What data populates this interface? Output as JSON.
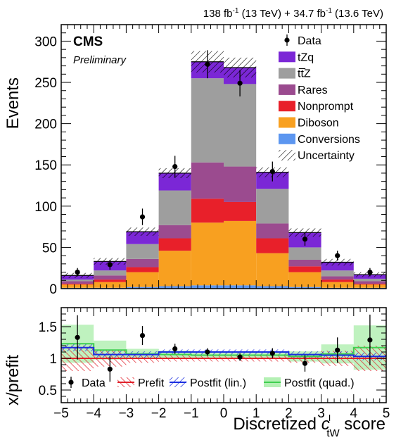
{
  "header": {
    "lumi_run2": "138 fb",
    "lumi_run2_sup": "-1",
    "lumi_run2_energy": " (13 TeV) + ",
    "lumi_run3": "34.7 fb",
    "lumi_run3_sup": "-1",
    "lumi_run3_energy": " (13.6 TeV)",
    "experiment": "CMS",
    "status": "Preliminary"
  },
  "colors": {
    "tZq": "#7b27d6",
    "ttZ": "#9e9e9e",
    "Rares": "#9b4b8f",
    "Nonprompt": "#e8202a",
    "Diboson": "#f8a020",
    "Conversions": "#5c96f0",
    "Prefit": "#e0202a",
    "PostfitLin": "#1a2ee0",
    "PostfitQuad": "#3fcf50",
    "PostfitQuadBand": "#b4f0b4"
  },
  "chart_data": [
    {
      "type": "stacked_bar",
      "xlabel_main": "Discretized ",
      "xlabel_symbol": "c",
      "xlabel_sup": "I",
      "xlabel_sub": "tW",
      "xlabel_tail": " score",
      "ylabel": "Events",
      "xlim": [
        -5,
        5
      ],
      "ylim": [
        0,
        320
      ],
      "x_ticks": [
        -5,
        -4,
        -3,
        -2,
        -1,
        0,
        1,
        2,
        3,
        4,
        5
      ],
      "y_ticks": [
        0,
        50,
        100,
        150,
        200,
        250,
        300
      ],
      "bin_edges": [
        -5,
        -4,
        -3,
        -2,
        -1,
        0,
        1,
        2,
        3,
        4,
        5
      ],
      "series": [
        {
          "name": "Conversions",
          "values": [
            1,
            1,
            2,
            3,
            4,
            4,
            3,
            2,
            1,
            1
          ]
        },
        {
          "name": "Diboson",
          "values": [
            4,
            7,
            18,
            43,
            76,
            78,
            40,
            18,
            7,
            4
          ]
        },
        {
          "name": "Nonprompt",
          "values": [
            1,
            3,
            6,
            15,
            29,
            23,
            18,
            7,
            3,
            1
          ]
        },
        {
          "name": "Rares",
          "values": [
            3,
            5,
            10,
            16,
            44,
            43,
            18,
            8,
            4,
            3
          ]
        },
        {
          "name": "ttZ",
          "values": [
            2,
            6,
            18,
            42,
            102,
            100,
            42,
            15,
            7,
            3
          ]
        },
        {
          "name": "tZq",
          "values": [
            5,
            11,
            15,
            21,
            20,
            20,
            20,
            18,
            10,
            5
          ]
        }
      ],
      "uncertainty": [
        3,
        4,
        5,
        6,
        13,
        12,
        6,
        5,
        4,
        3
      ],
      "data": {
        "name": "Data",
        "x": [
          -4.5,
          -3.5,
          -2.5,
          -1.5,
          -0.5,
          0.5,
          1.5,
          2.5,
          3.5,
          4.5
        ],
        "y": [
          20,
          29,
          87,
          148,
          272,
          249,
          142,
          60,
          40,
          20
        ],
        "err": [
          5,
          6,
          10,
          13,
          17,
          16,
          12,
          8,
          6,
          5
        ]
      },
      "legend": {
        "placement": "top-right",
        "entries": [
          "Data",
          "tZq",
          "tt̅Z",
          "Rares",
          "Nonprompt",
          "Diboson",
          "Conversions",
          "Uncertainty"
        ]
      },
      "text_annotations": [
        "CMS",
        "Preliminary"
      ]
    },
    {
      "type": "ratio",
      "ylabel": "x/prefit",
      "ylim": [
        0.3,
        1.8
      ],
      "y_ticks": [
        0.5,
        1,
        1.5
      ],
      "y_tick_labels": [
        "0.5",
        "1",
        "1.5"
      ],
      "data": {
        "name": "Data",
        "x": [
          -4.5,
          -3.5,
          -2.5,
          -1.5,
          -0.5,
          0.5,
          1.5,
          2.5,
          3.5,
          4.5
        ],
        "y": [
          1.33,
          0.83,
          1.36,
          1.15,
          1.1,
          1.02,
          1.08,
          0.92,
          1.13,
          1.29
        ],
        "err": [
          0.35,
          0.2,
          0.15,
          0.08,
          0.06,
          0.06,
          0.08,
          0.13,
          0.2,
          0.4
        ]
      },
      "prefit": {
        "name": "Prefit",
        "values": [
          1,
          1,
          1,
          1,
          1,
          1,
          1,
          1,
          1,
          1
        ],
        "unc": [
          0.2,
          0.13,
          0.07,
          0.05,
          0.05,
          0.05,
          0.05,
          0.07,
          0.12,
          0.2
        ]
      },
      "postfit_lin": {
        "name": "Postfit (lin.)",
        "values": [
          1.17,
          1.06,
          1.06,
          1.1,
          1.1,
          1.1,
          1.1,
          1.06,
          1.05,
          1.03
        ],
        "unc": [
          0.06,
          0.06,
          0.05,
          0.04,
          0.04,
          0.04,
          0.04,
          0.05,
          0.06,
          0.06
        ]
      },
      "postfit_quad": {
        "name": "Postfit (quad.)",
        "values": [
          1.23,
          1.13,
          1.07,
          1.06,
          1.05,
          1.05,
          1.05,
          1.03,
          1.07,
          1.17
        ],
        "unc": [
          0.3,
          0.15,
          0.08,
          0.06,
          0.05,
          0.05,
          0.06,
          0.08,
          0.15,
          0.35
        ]
      },
      "legend": {
        "placement": "bottom",
        "entries": [
          "Data",
          "Prefit",
          "Postfit (lin.)",
          "Postfit (quad.)"
        ]
      }
    }
  ]
}
